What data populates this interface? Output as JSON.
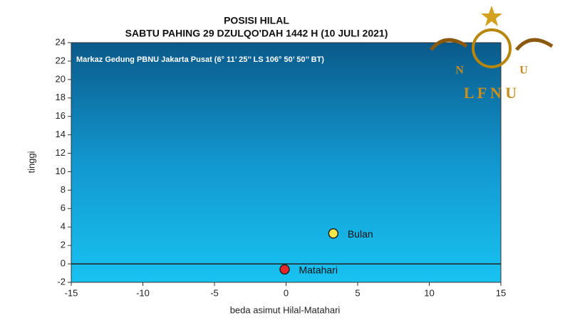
{
  "chart_data": {
    "type": "scatter",
    "title": "POSISI HILAL",
    "subtitle": "SABTU PAHING 29 DZULQO'DAH 1442 H (10 JULI 2021)",
    "annotation": "Markaz Gedung PBNU Jakarta Pusat (6° 11’ 25’’ LS 106° 50’ 50’’ BT)",
    "x_label": "beda asimut Hilal-Matahari",
    "y_label": "tinggi",
    "xlim": [
      -15,
      15
    ],
    "xticks": [
      -15,
      -10,
      -5,
      0,
      5,
      10,
      15
    ],
    "ylim": [
      -2,
      24
    ],
    "yticks": [
      -2,
      0,
      2,
      4,
      6,
      8,
      10,
      12,
      14,
      16,
      18,
      20,
      22,
      24
    ],
    "series": [
      {
        "name": "Bulan",
        "color": "#f3e84a",
        "x": [
          3.3
        ],
        "values": [
          3.3
        ]
      },
      {
        "name": "Matahari",
        "color": "#e8262a",
        "x": [
          -0.1
        ],
        "values": [
          -0.6
        ]
      }
    ]
  },
  "logo": {
    "left": "N",
    "right": "U",
    "name": "L F N U"
  }
}
